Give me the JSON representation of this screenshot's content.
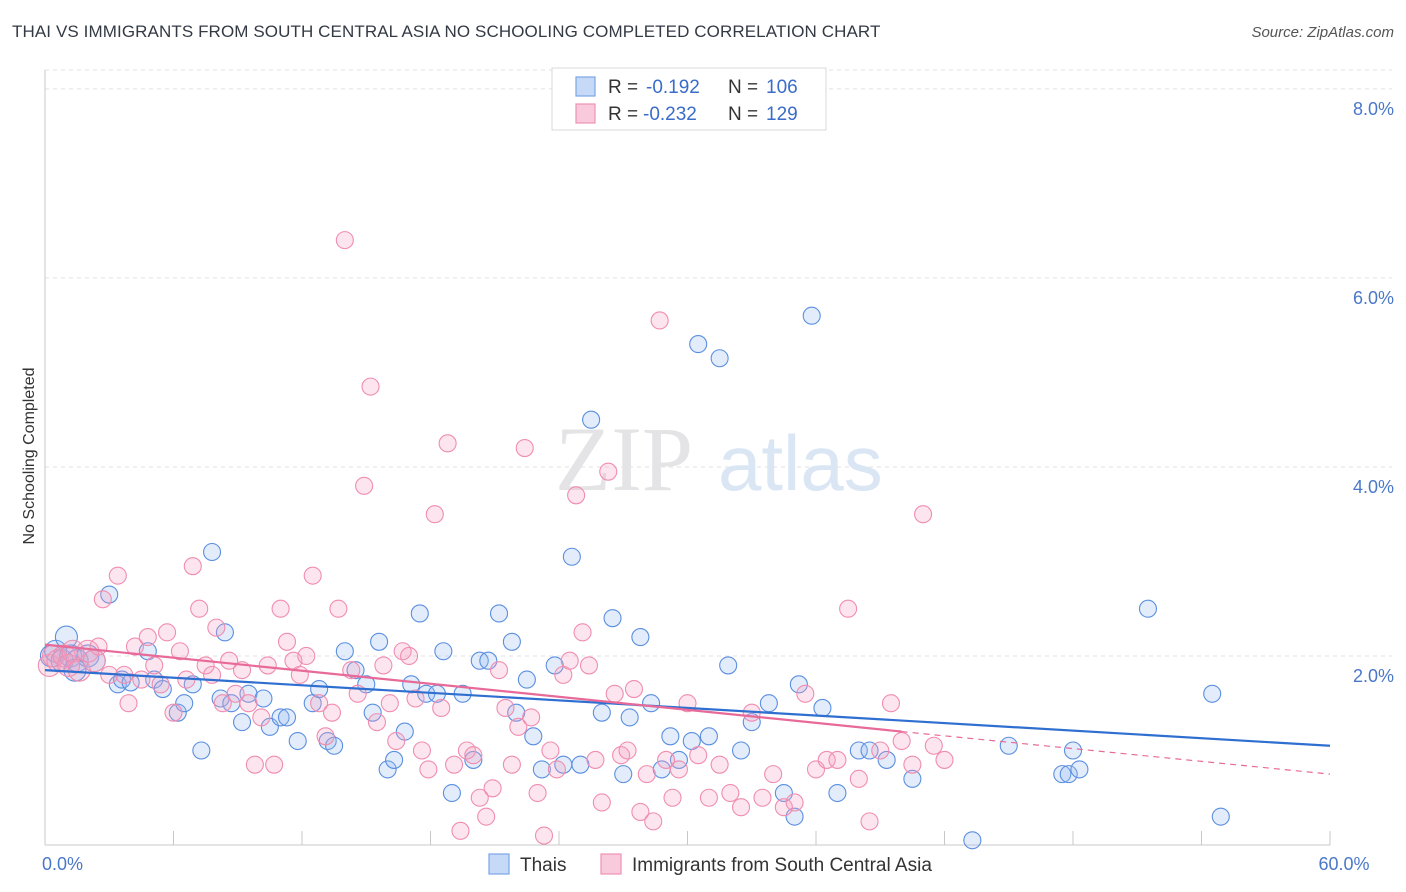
{
  "title": "THAI VS IMMIGRANTS FROM SOUTH CENTRAL ASIA NO SCHOOLING COMPLETED CORRELATION CHART",
  "source": "Source: ZipAtlas.com",
  "watermark": {
    "zip": "ZIP",
    "atlas": "atlas"
  },
  "chart_data": {
    "type": "scatter",
    "ylabel": "No Schooling Completed",
    "xlabel": "",
    "xlim": [
      0,
      60
    ],
    "ylim": [
      0,
      8.2
    ],
    "x_tick_labels": [
      {
        "value": 0,
        "label": "0.0%"
      },
      {
        "value": 60,
        "label": "60.0%"
      }
    ],
    "y_tick_labels": [
      {
        "value": 2,
        "label": "2.0%"
      },
      {
        "value": 4,
        "label": "4.0%"
      },
      {
        "value": 6,
        "label": "6.0%"
      },
      {
        "value": 8,
        "label": "8.0%"
      }
    ],
    "grid": "horizontal dashed",
    "legend_position": "top-center",
    "legend": [
      {
        "r_label": "R =",
        "r_value": "-0.192",
        "n_label": "N =",
        "n_value": "106"
      },
      {
        "r_label": "R =",
        "r_value": "-0.232",
        "n_label": "N =",
        "n_value": "129"
      }
    ],
    "series": [
      {
        "name": "Thais",
        "color": "#5b8fe0",
        "line_color": "#2f6fd0",
        "trend": {
          "x0": 0,
          "y0": 1.85,
          "x1": 60,
          "y1": 1.05
        },
        "points": [
          [
            0.3,
            2.0
          ],
          [
            0.5,
            2.05
          ],
          [
            0.8,
            1.95
          ],
          [
            1.0,
            2.2
          ],
          [
            1.2,
            2.0
          ],
          [
            1.5,
            1.95
          ],
          [
            2.0,
            2.0
          ],
          [
            1.4,
            1.85
          ],
          [
            2.3,
            1.95
          ],
          [
            3.0,
            2.65
          ],
          [
            3.4,
            1.7
          ],
          [
            3.6,
            1.75
          ],
          [
            4.0,
            1.72
          ],
          [
            4.8,
            2.05
          ],
          [
            5.1,
            1.75
          ],
          [
            5.5,
            1.65
          ],
          [
            6.2,
            1.4
          ],
          [
            6.5,
            1.5
          ],
          [
            6.9,
            1.7
          ],
          [
            7.3,
            1.0
          ],
          [
            7.8,
            3.1
          ],
          [
            8.2,
            1.55
          ],
          [
            8.4,
            2.25
          ],
          [
            8.7,
            1.5
          ],
          [
            9.2,
            1.3
          ],
          [
            9.5,
            1.6
          ],
          [
            10.2,
            1.55
          ],
          [
            10.5,
            1.25
          ],
          [
            11.0,
            1.35
          ],
          [
            11.3,
            1.35
          ],
          [
            11.8,
            1.1
          ],
          [
            12.5,
            1.5
          ],
          [
            12.8,
            1.65
          ],
          [
            13.2,
            1.1
          ],
          [
            13.5,
            1.05
          ],
          [
            14.0,
            2.05
          ],
          [
            14.5,
            1.85
          ],
          [
            15.0,
            1.7
          ],
          [
            15.3,
            1.4
          ],
          [
            15.6,
            2.15
          ],
          [
            16.0,
            0.8
          ],
          [
            16.3,
            0.9
          ],
          [
            16.8,
            1.2
          ],
          [
            17.1,
            1.7
          ],
          [
            17.5,
            2.45
          ],
          [
            17.8,
            1.6
          ],
          [
            18.3,
            1.6
          ],
          [
            18.6,
            2.05
          ],
          [
            19.0,
            0.55
          ],
          [
            19.5,
            1.6
          ],
          [
            20.0,
            0.9
          ],
          [
            20.3,
            1.95
          ],
          [
            20.7,
            1.95
          ],
          [
            21.2,
            2.45
          ],
          [
            21.8,
            2.15
          ],
          [
            22.0,
            1.4
          ],
          [
            22.5,
            1.75
          ],
          [
            22.8,
            1.15
          ],
          [
            23.2,
            0.8
          ],
          [
            23.8,
            1.9
          ],
          [
            24.2,
            0.85
          ],
          [
            24.6,
            3.05
          ],
          [
            25.0,
            0.85
          ],
          [
            25.5,
            4.5
          ],
          [
            26.0,
            1.4
          ],
          [
            26.5,
            2.4
          ],
          [
            27.0,
            0.75
          ],
          [
            27.3,
            1.35
          ],
          [
            27.8,
            2.2
          ],
          [
            28.3,
            1.5
          ],
          [
            28.8,
            0.8
          ],
          [
            29.2,
            1.15
          ],
          [
            29.6,
            0.9
          ],
          [
            30.2,
            1.1
          ],
          [
            30.5,
            5.3
          ],
          [
            31.0,
            1.15
          ],
          [
            31.5,
            5.15
          ],
          [
            31.9,
            1.9
          ],
          [
            32.5,
            1.0
          ],
          [
            33.0,
            1.3
          ],
          [
            33.8,
            1.5
          ],
          [
            34.5,
            0.55
          ],
          [
            35.0,
            0.3
          ],
          [
            35.2,
            1.7
          ],
          [
            35.8,
            5.6
          ],
          [
            36.3,
            1.45
          ],
          [
            37.0,
            0.55
          ],
          [
            38.0,
            1.0
          ],
          [
            38.5,
            1.0
          ],
          [
            39.3,
            0.9
          ],
          [
            40.5,
            0.7
          ],
          [
            45.0,
            1.05
          ],
          [
            47.5,
            0.75
          ],
          [
            47.8,
            0.75
          ],
          [
            48.0,
            1.0
          ],
          [
            48.3,
            0.8
          ],
          [
            51.5,
            2.5
          ],
          [
            54.5,
            1.6
          ],
          [
            54.9,
            0.3
          ],
          [
            43.3,
            0.05
          ]
        ]
      },
      {
        "name": "Immigrants from South Central Asia",
        "color": "#f08db0",
        "line_color": "#e86a98",
        "trend": {
          "x0": 0,
          "y0": 2.12,
          "x1": 40,
          "y1": 1.2
        },
        "trend_extension": {
          "x0": 40,
          "y0": 1.2,
          "x1": 60,
          "y1": 0.75
        },
        "points": [
          [
            0.2,
            1.9
          ],
          [
            0.4,
            2.0
          ],
          [
            0.6,
            1.95
          ],
          [
            0.9,
            2.0
          ],
          [
            1.1,
            1.9
          ],
          [
            1.3,
            2.05
          ],
          [
            1.6,
            1.85
          ],
          [
            2.0,
            2.05
          ],
          [
            2.3,
            1.95
          ],
          [
            2.5,
            2.1
          ],
          [
            2.7,
            2.6
          ],
          [
            3.0,
            1.8
          ],
          [
            3.4,
            2.85
          ],
          [
            3.7,
            1.8
          ],
          [
            3.9,
            1.5
          ],
          [
            4.2,
            2.1
          ],
          [
            4.5,
            1.75
          ],
          [
            4.8,
            2.2
          ],
          [
            5.1,
            1.9
          ],
          [
            5.4,
            1.7
          ],
          [
            5.7,
            2.25
          ],
          [
            6.0,
            1.4
          ],
          [
            6.3,
            2.05
          ],
          [
            6.6,
            1.75
          ],
          [
            6.9,
            2.95
          ],
          [
            7.2,
            2.5
          ],
          [
            7.5,
            1.9
          ],
          [
            7.8,
            1.8
          ],
          [
            8.0,
            2.3
          ],
          [
            8.3,
            1.5
          ],
          [
            8.6,
            1.95
          ],
          [
            8.9,
            1.6
          ],
          [
            9.2,
            1.85
          ],
          [
            9.5,
            1.5
          ],
          [
            9.8,
            0.85
          ],
          [
            10.1,
            1.35
          ],
          [
            10.4,
            1.9
          ],
          [
            10.7,
            0.85
          ],
          [
            11.0,
            2.5
          ],
          [
            11.3,
            2.15
          ],
          [
            11.6,
            1.95
          ],
          [
            11.9,
            1.8
          ],
          [
            12.2,
            2.0
          ],
          [
            12.5,
            2.85
          ],
          [
            12.8,
            1.5
          ],
          [
            13.1,
            1.15
          ],
          [
            13.4,
            1.4
          ],
          [
            13.7,
            2.5
          ],
          [
            14.0,
            6.4
          ],
          [
            14.3,
            1.85
          ],
          [
            14.6,
            1.6
          ],
          [
            14.9,
            3.8
          ],
          [
            15.2,
            4.85
          ],
          [
            15.5,
            1.3
          ],
          [
            15.8,
            1.9
          ],
          [
            16.1,
            1.5
          ],
          [
            16.4,
            1.1
          ],
          [
            16.7,
            2.05
          ],
          [
            17.0,
            2.0
          ],
          [
            17.3,
            1.55
          ],
          [
            17.6,
            1.0
          ],
          [
            17.9,
            0.8
          ],
          [
            18.2,
            3.5
          ],
          [
            18.5,
            1.45
          ],
          [
            18.8,
            4.25
          ],
          [
            19.1,
            0.85
          ],
          [
            19.4,
            0.15
          ],
          [
            19.7,
            1.0
          ],
          [
            20.0,
            0.95
          ],
          [
            20.3,
            0.5
          ],
          [
            20.6,
            0.3
          ],
          [
            20.9,
            0.6
          ],
          [
            21.2,
            1.85
          ],
          [
            21.5,
            1.45
          ],
          [
            21.8,
            0.85
          ],
          [
            22.1,
            1.25
          ],
          [
            22.4,
            4.2
          ],
          [
            22.7,
            1.35
          ],
          [
            23.0,
            0.55
          ],
          [
            23.3,
            0.1
          ],
          [
            23.6,
            1.0
          ],
          [
            23.9,
            0.8
          ],
          [
            24.2,
            1.8
          ],
          [
            24.5,
            1.95
          ],
          [
            24.8,
            3.7
          ],
          [
            25.1,
            2.25
          ],
          [
            25.4,
            1.9
          ],
          [
            25.7,
            0.9
          ],
          [
            26.0,
            0.45
          ],
          [
            26.3,
            3.95
          ],
          [
            26.6,
            1.6
          ],
          [
            26.9,
            0.95
          ],
          [
            27.2,
            1.0
          ],
          [
            27.5,
            1.65
          ],
          [
            27.8,
            0.35
          ],
          [
            28.1,
            0.75
          ],
          [
            28.4,
            0.25
          ],
          [
            28.7,
            5.55
          ],
          [
            29.0,
            0.9
          ],
          [
            29.3,
            0.5
          ],
          [
            29.6,
            0.8
          ],
          [
            30.0,
            1.5
          ],
          [
            30.5,
            0.95
          ],
          [
            31.0,
            0.5
          ],
          [
            31.5,
            0.85
          ],
          [
            32.0,
            0.55
          ],
          [
            32.5,
            0.4
          ],
          [
            33.0,
            1.4
          ],
          [
            33.5,
            0.5
          ],
          [
            34.0,
            0.75
          ],
          [
            34.5,
            0.4
          ],
          [
            35.0,
            0.45
          ],
          [
            35.5,
            1.6
          ],
          [
            36.0,
            0.8
          ],
          [
            36.5,
            0.9
          ],
          [
            37.0,
            0.9
          ],
          [
            37.5,
            2.5
          ],
          [
            38.0,
            0.7
          ],
          [
            38.5,
            0.25
          ],
          [
            39.0,
            1.0
          ],
          [
            39.5,
            1.5
          ],
          [
            40.0,
            1.1
          ],
          [
            41.0,
            3.5
          ],
          [
            40.5,
            0.85
          ],
          [
            41.5,
            1.05
          ],
          [
            42.0,
            0.9
          ]
        ]
      }
    ]
  }
}
